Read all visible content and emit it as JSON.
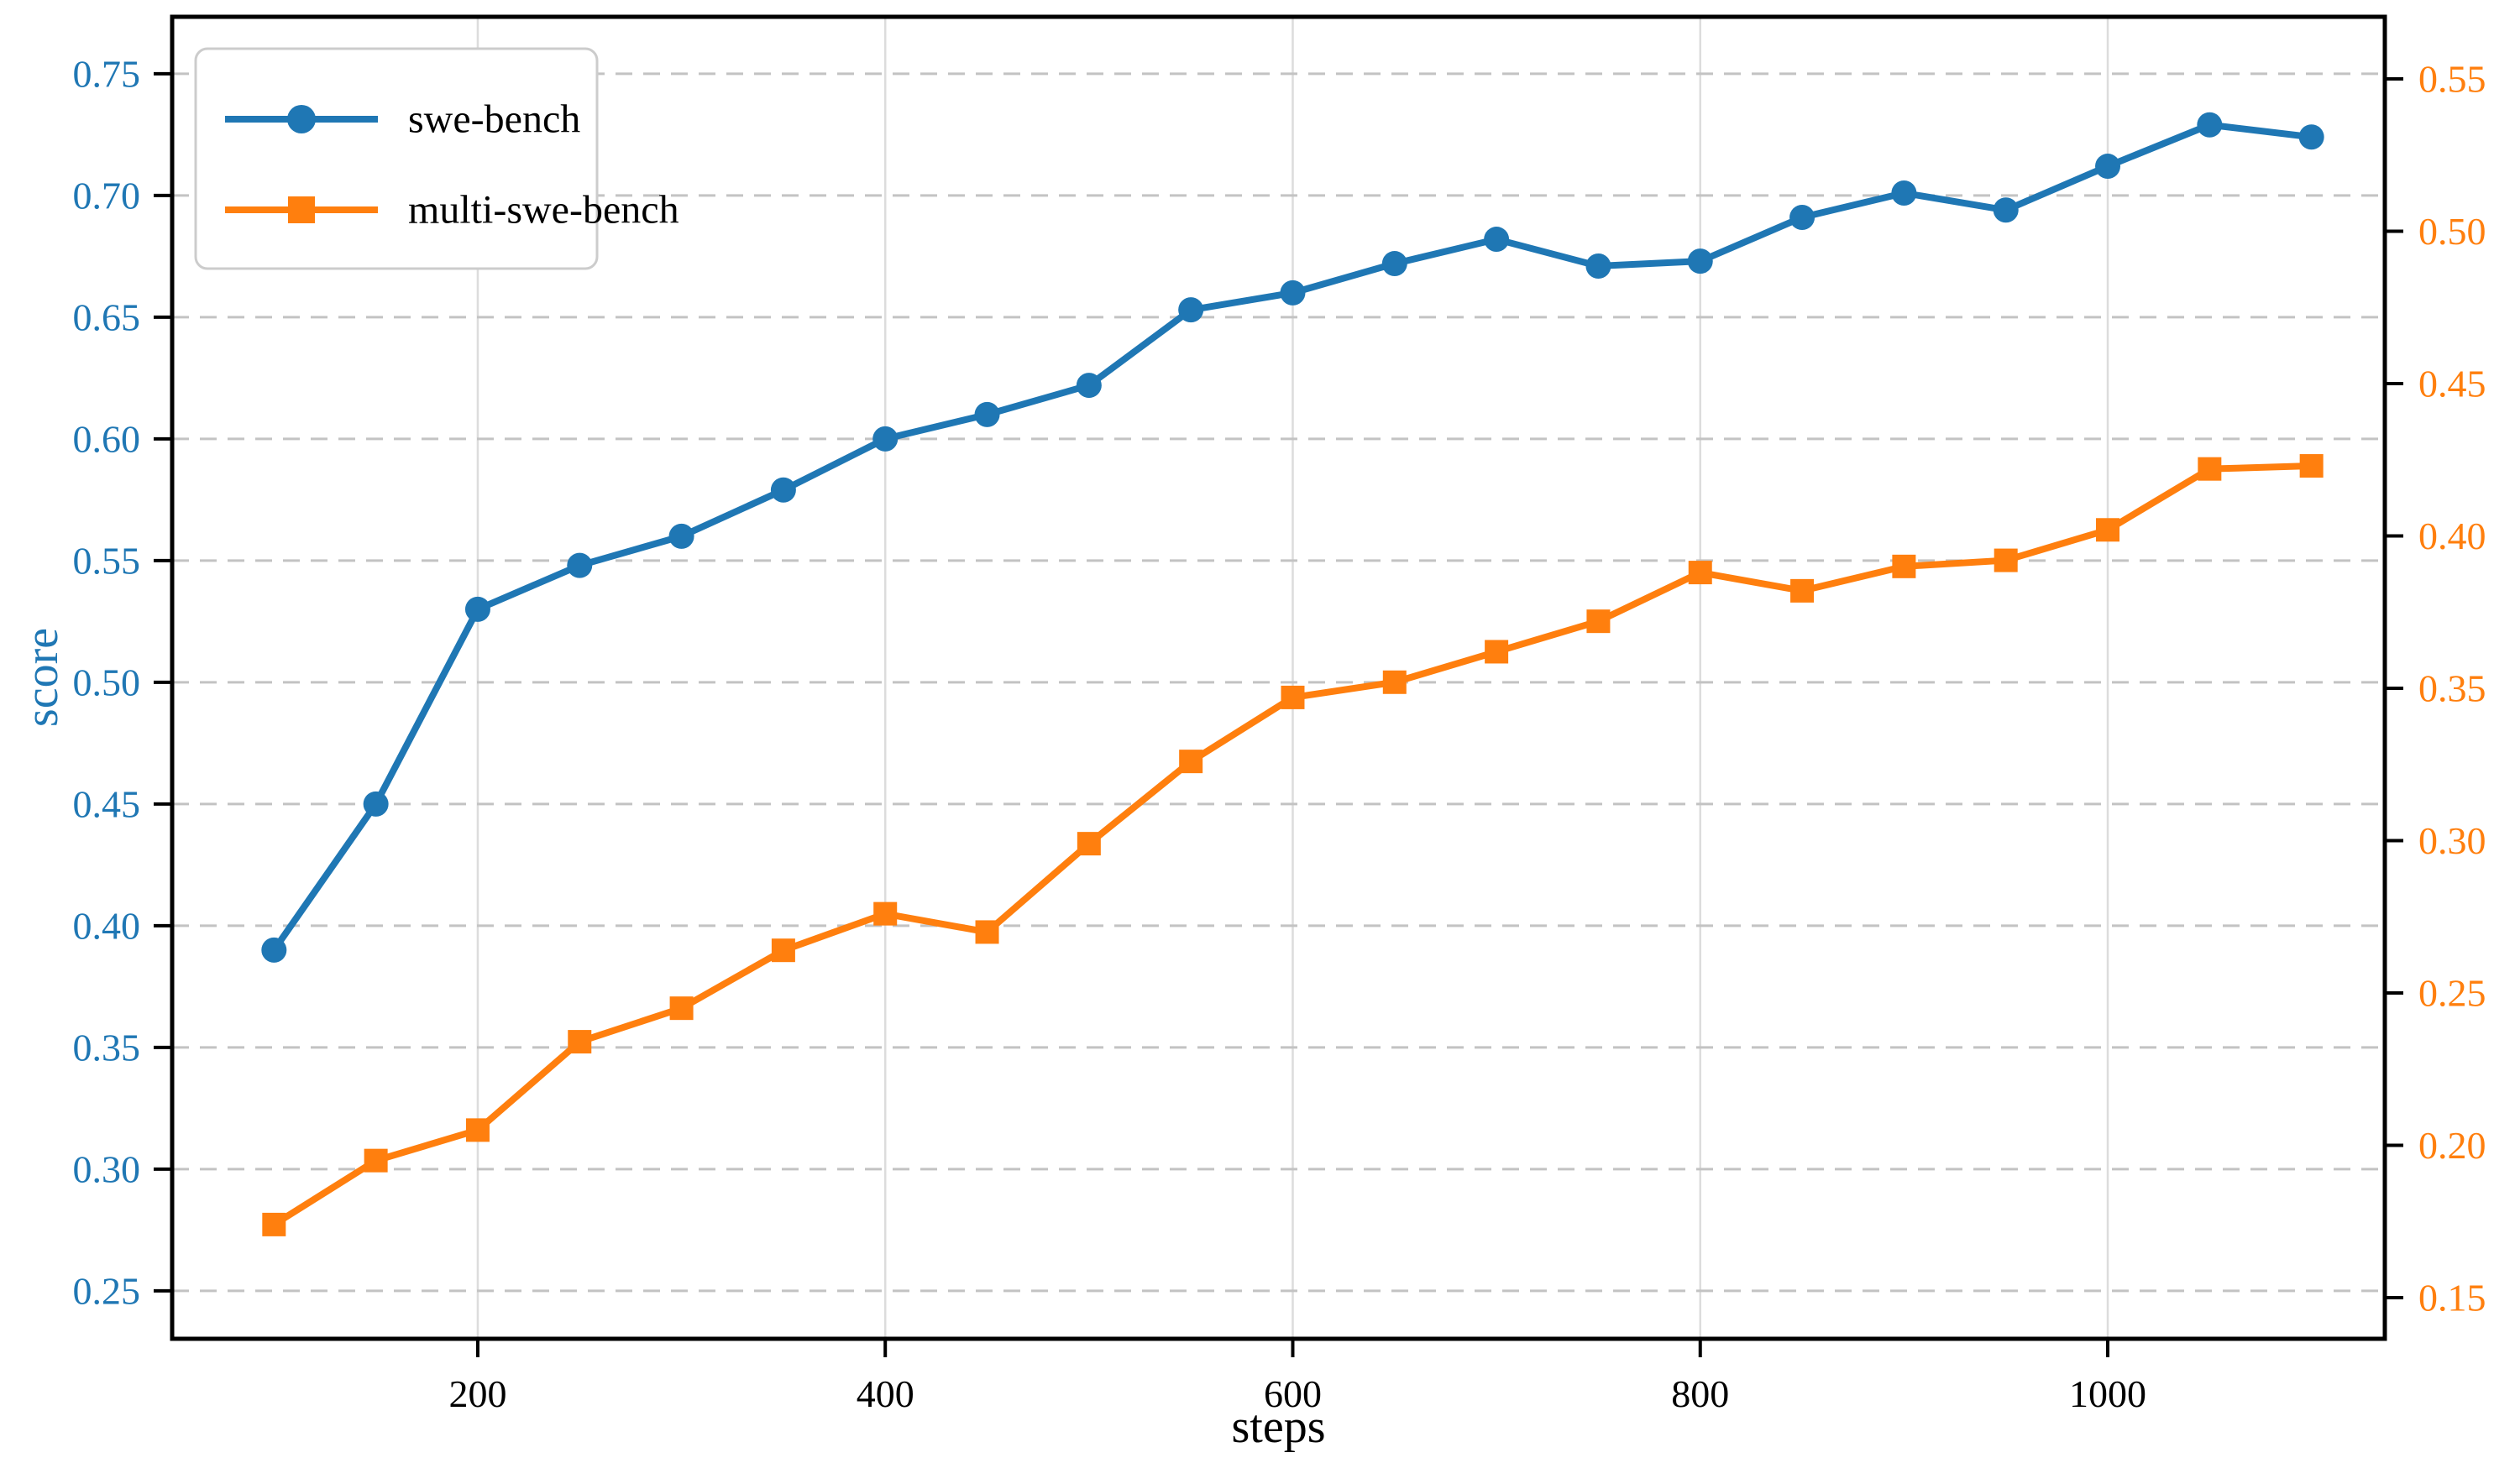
{
  "chart_data": {
    "type": "line",
    "title": "",
    "xlabel": "steps",
    "ylabel_left": "score",
    "x_ticks": [
      200,
      400,
      600,
      800,
      1000
    ],
    "y_ticks_left": [
      0.25,
      0.3,
      0.35,
      0.4,
      0.45,
      0.5,
      0.55,
      0.6,
      0.65,
      0.7,
      0.75
    ],
    "y_ticks_right": [
      0.15,
      0.2,
      0.25,
      0.3,
      0.35,
      0.4,
      0.45,
      0.5,
      0.55
    ],
    "xlim": [
      50,
      1136
    ],
    "ylim_left": [
      0.2303,
      0.7734
    ],
    "ylim_right": [
      0.1365,
      0.5704
    ],
    "grid": {
      "horizontal": "dashed",
      "vertical": "solid",
      "h_color": "#c3c3c3",
      "v_color": "#dcdcdc"
    },
    "axis_colors": {
      "left_ticks": "#1f77b4",
      "right_ticks": "#ff7f0e",
      "x_ticks": "#000000",
      "spine": "#000000"
    },
    "legend": {
      "position": "upper left",
      "entries": [
        {
          "label": "swe-bench",
          "marker": "circle",
          "color": "#1f77b4"
        },
        {
          "label": "multi-swe-bench",
          "marker": "square",
          "color": "#ff7f0e"
        }
      ]
    },
    "x": [
      100,
      150,
      200,
      250,
      300,
      350,
      400,
      450,
      500,
      550,
      600,
      650,
      700,
      750,
      800,
      850,
      900,
      950,
      1000,
      1050,
      1100
    ],
    "series": [
      {
        "name": "swe-bench",
        "axis": "left",
        "color": "#1f77b4",
        "marker": "circle",
        "values": [
          0.39,
          0.45,
          0.53,
          0.548,
          0.56,
          0.579,
          0.6,
          0.61,
          0.622,
          0.653,
          0.66,
          0.672,
          0.682,
          0.671,
          0.673,
          0.691,
          0.701,
          0.694,
          0.712,
          0.729,
          0.724
        ]
      },
      {
        "name": "multi-swe-bench",
        "axis": "right",
        "color": "#ff7f0e",
        "marker": "square",
        "values": [
          0.174,
          0.195,
          0.205,
          0.234,
          0.245,
          0.264,
          0.276,
          0.27,
          0.299,
          0.326,
          0.347,
          0.352,
          0.362,
          0.372,
          0.388,
          0.382,
          0.39,
          0.392,
          0.402,
          0.422,
          0.423
        ]
      }
    ]
  }
}
